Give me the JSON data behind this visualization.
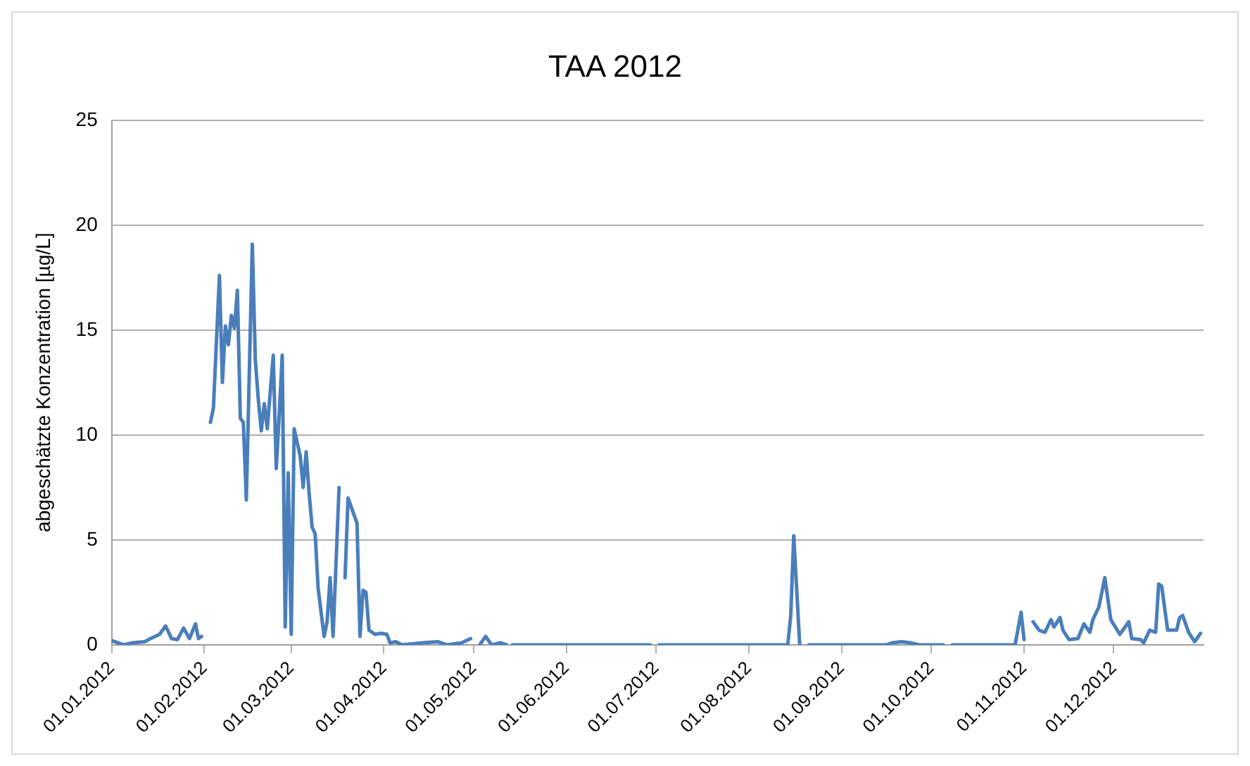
{
  "chart_data": {
    "type": "line",
    "title": "TAA 2012",
    "ylabel": "abgeschätzte Konzentration [µg/L]",
    "xlim": [
      "2012-01-01",
      "2012-12-31"
    ],
    "xticks": [
      {
        "value": "2012-01-01",
        "label": "01.01.2012"
      },
      {
        "value": "2012-02-01",
        "label": "01.02.2012"
      },
      {
        "value": "2012-03-01",
        "label": "01.03.2012"
      },
      {
        "value": "2012-04-01",
        "label": "01.04.2012"
      },
      {
        "value": "2012-05-01",
        "label": "01.05.2012"
      },
      {
        "value": "2012-06-01",
        "label": "01.06.2012"
      },
      {
        "value": "2012-07-01",
        "label": "01.07.2012"
      },
      {
        "value": "2012-08-01",
        "label": "01.08.2012"
      },
      {
        "value": "2012-09-01",
        "label": "01.09.2012"
      },
      {
        "value": "2012-10-01",
        "label": "01.10.2012"
      },
      {
        "value": "2012-11-01",
        "label": "01.11.2012"
      },
      {
        "value": "2012-12-01",
        "label": "01.12.2012"
      }
    ],
    "ylim": [
      0,
      25
    ],
    "yticks": [
      0,
      5,
      10,
      15,
      20,
      25
    ],
    "grid": "y",
    "legend": false,
    "marker": "none",
    "line_style": "solid",
    "x": [
      "2012-01-01",
      "2012-01-05",
      "2012-01-08",
      "2012-01-12",
      "2012-01-14",
      "2012-01-17",
      "2012-01-19",
      "2012-01-21",
      "2012-01-23",
      "2012-01-25",
      "2012-01-27",
      "2012-01-29",
      "2012-01-30",
      "2012-01-31",
      "2012-02-01",
      "2012-02-03",
      "2012-02-04",
      "2012-02-06",
      "2012-02-07",
      "2012-02-08",
      "2012-02-09",
      "2012-02-10",
      "2012-02-11",
      "2012-02-12",
      "2012-02-13",
      "2012-02-14",
      "2012-02-15",
      "2012-02-17",
      "2012-02-18",
      "2012-02-19",
      "2012-02-20",
      "2012-02-21",
      "2012-02-22",
      "2012-02-24",
      "2012-02-25",
      "2012-02-26",
      "2012-02-27",
      "2012-02-28",
      "2012-02-29",
      "2012-03-01",
      "2012-03-02",
      "2012-03-04",
      "2012-03-05",
      "2012-03-06",
      "2012-03-07",
      "2012-03-08",
      "2012-03-09",
      "2012-03-10",
      "2012-03-12",
      "2012-03-13",
      "2012-03-14",
      "2012-03-15",
      "2012-03-17",
      "2012-03-18",
      "2012-03-19",
      "2012-03-20",
      "2012-03-23",
      "2012-03-24",
      "2012-03-25",
      "2012-03-26",
      "2012-03-27",
      "2012-03-29",
      "2012-03-31",
      "2012-04-02",
      "2012-04-03",
      "2012-04-05",
      "2012-04-07",
      "2012-04-14",
      "2012-04-19",
      "2012-04-22",
      "2012-04-27",
      "2012-04-30",
      "2012-05-01",
      "2012-05-03",
      "2012-05-05",
      "2012-05-07",
      "2012-05-10",
      "2012-05-12",
      "2012-05-13",
      "2012-05-14",
      "2012-06-29",
      "2012-06-30",
      "2012-07-02",
      "2012-08-14",
      "2012-08-15",
      "2012-08-16",
      "2012-08-18",
      "2012-08-19",
      "2012-08-21",
      "2012-09-16",
      "2012-09-18",
      "2012-09-21",
      "2012-09-24",
      "2012-09-27",
      "2012-10-05",
      "2012-10-06",
      "2012-10-08",
      "2012-10-29",
      "2012-10-31",
      "2012-11-01",
      "2012-11-02",
      "2012-11-04",
      "2012-11-06",
      "2012-11-08",
      "2012-11-10",
      "2012-11-11",
      "2012-11-13",
      "2012-11-14",
      "2012-11-16",
      "2012-11-19",
      "2012-11-21",
      "2012-11-23",
      "2012-11-24",
      "2012-11-26",
      "2012-11-28",
      "2012-11-30",
      "2012-12-03",
      "2012-12-06",
      "2012-12-07",
      "2012-12-10",
      "2012-12-11",
      "2012-12-13",
      "2012-12-15",
      "2012-12-16",
      "2012-12-17",
      "2012-12-19",
      "2012-12-22",
      "2012-12-23",
      "2012-12-24",
      "2012-12-26",
      "2012-12-28",
      "2012-12-30"
    ],
    "series": [
      {
        "color": "#4a7ebb",
        "values": [
          0.2,
          0,
          0.1,
          0.15,
          0.3,
          0.5,
          0.9,
          0.3,
          0.25,
          0.8,
          0.3,
          1.0,
          0.3,
          0.4,
          null,
          10.6,
          11.3,
          17.6,
          12.5,
          15.2,
          14.3,
          15.7,
          15.1,
          16.9,
          10.8,
          10.6,
          6.9,
          19.1,
          13.6,
          11.7,
          10.2,
          11.5,
          10.3,
          13.8,
          8.4,
          11.0,
          13.8,
          0.85,
          8.2,
          0.5,
          10.3,
          9.0,
          7.5,
          9.2,
          7.2,
          5.6,
          5.3,
          2.7,
          0.4,
          1.1,
          3.2,
          0.4,
          7.5,
          null,
          3.2,
          7.0,
          5.8,
          0.4,
          2.6,
          2.5,
          0.7,
          0.5,
          0.55,
          0.5,
          0.1,
          0.15,
          0,
          0.1,
          0.15,
          0,
          0.1,
          0.3,
          null,
          0,
          0.4,
          0,
          0.1,
          0,
          null,
          0,
          0,
          null,
          0,
          0,
          1.4,
          5.2,
          0,
          null,
          0,
          0,
          0.1,
          0.15,
          0.1,
          0,
          0,
          null,
          0,
          0,
          1.55,
          0.25,
          null,
          1.1,
          0.7,
          0.6,
          1.2,
          0.85,
          1.3,
          0.7,
          0.25,
          0.3,
          1.0,
          0.6,
          1.2,
          1.8,
          3.2,
          1.2,
          0.5,
          1.1,
          0.3,
          0.25,
          0.1,
          0.7,
          0.6,
          2.9,
          2.8,
          0.7,
          0.7,
          1.3,
          1.4,
          0.6,
          0.15,
          0.55
        ]
      }
    ]
  }
}
